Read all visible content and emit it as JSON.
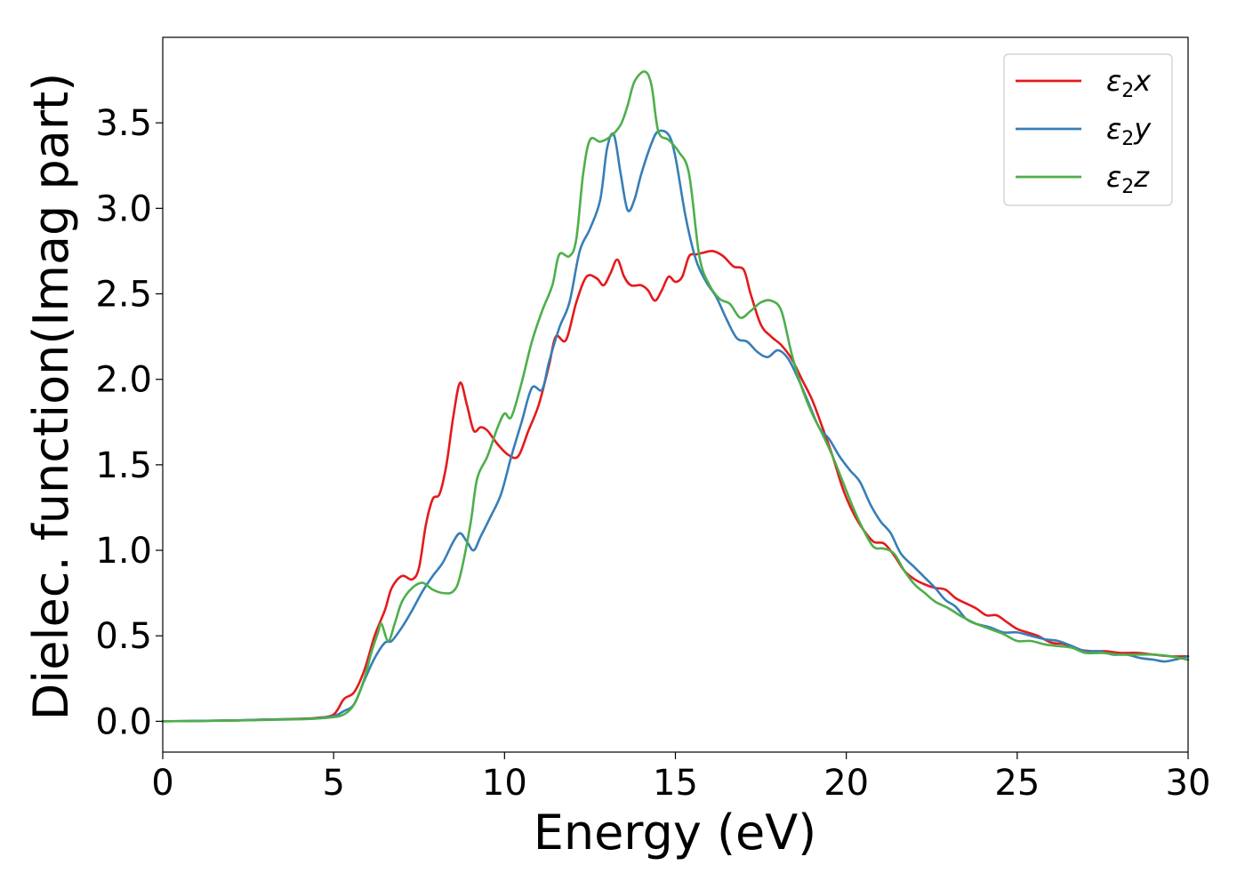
{
  "chart_data": {
    "type": "line",
    "title": "",
    "xlabel": "Energy (eV)",
    "ylabel": "Dielec. function(Imag part)",
    "xlim": [
      0,
      30
    ],
    "ylim": [
      -0.18,
      4.0
    ],
    "xticks": [
      0,
      5,
      10,
      15,
      20,
      25,
      30
    ],
    "xtick_labels": [
      "0",
      "5",
      "10",
      "15",
      "20",
      "25",
      "30"
    ],
    "yticks": [
      0.0,
      0.5,
      1.0,
      1.5,
      2.0,
      2.5,
      3.0,
      3.5
    ],
    "ytick_labels": [
      "0.0",
      "0.5",
      "1.0",
      "1.5",
      "2.0",
      "2.5",
      "3.0",
      "3.5"
    ],
    "grid": false,
    "legend_position": "top-right",
    "series": [
      {
        "name": "ε2x",
        "legend": {
          "base": "ε",
          "sub": "2",
          "suffix": "x"
        },
        "color": "#e41a1c",
        "points": [
          [
            0,
            0
          ],
          [
            2,
            0.005
          ],
          [
            3,
            0.01
          ],
          [
            4,
            0.015
          ],
          [
            4.5,
            0.02
          ],
          [
            5,
            0.04
          ],
          [
            5.3,
            0.13
          ],
          [
            5.6,
            0.17
          ],
          [
            5.9,
            0.3
          ],
          [
            6.2,
            0.5
          ],
          [
            6.5,
            0.65
          ],
          [
            6.7,
            0.78
          ],
          [
            7,
            0.85
          ],
          [
            7.3,
            0.83
          ],
          [
            7.5,
            0.9
          ],
          [
            7.7,
            1.15
          ],
          [
            7.9,
            1.3
          ],
          [
            8.1,
            1.33
          ],
          [
            8.3,
            1.5
          ],
          [
            8.5,
            1.78
          ],
          [
            8.7,
            1.98
          ],
          [
            8.9,
            1.85
          ],
          [
            9.1,
            1.7
          ],
          [
            9.3,
            1.72
          ],
          [
            9.5,
            1.7
          ],
          [
            9.8,
            1.62
          ],
          [
            10.1,
            1.56
          ],
          [
            10.4,
            1.55
          ],
          [
            10.7,
            1.7
          ],
          [
            11,
            1.85
          ],
          [
            11.3,
            2.08
          ],
          [
            11.5,
            2.25
          ],
          [
            11.8,
            2.23
          ],
          [
            12.1,
            2.45
          ],
          [
            12.4,
            2.6
          ],
          [
            12.7,
            2.59
          ],
          [
            12.9,
            2.55
          ],
          [
            13.1,
            2.62
          ],
          [
            13.3,
            2.7
          ],
          [
            13.5,
            2.6
          ],
          [
            13.7,
            2.55
          ],
          [
            14,
            2.55
          ],
          [
            14.2,
            2.52
          ],
          [
            14.4,
            2.46
          ],
          [
            14.6,
            2.52
          ],
          [
            14.8,
            2.6
          ],
          [
            15,
            2.57
          ],
          [
            15.2,
            2.6
          ],
          [
            15.4,
            2.72
          ],
          [
            15.6,
            2.73
          ],
          [
            15.8,
            2.74
          ],
          [
            16.1,
            2.75
          ],
          [
            16.4,
            2.72
          ],
          [
            16.7,
            2.66
          ],
          [
            17,
            2.64
          ],
          [
            17.2,
            2.5
          ],
          [
            17.5,
            2.32
          ],
          [
            17.8,
            2.25
          ],
          [
            18.1,
            2.2
          ],
          [
            18.4,
            2.12
          ],
          [
            18.7,
            2.0
          ],
          [
            19,
            1.88
          ],
          [
            19.3,
            1.72
          ],
          [
            19.6,
            1.55
          ],
          [
            19.9,
            1.36
          ],
          [
            20.2,
            1.22
          ],
          [
            20.5,
            1.12
          ],
          [
            20.8,
            1.05
          ],
          [
            21.1,
            1.04
          ],
          [
            21.4,
            0.97
          ],
          [
            21.7,
            0.88
          ],
          [
            22,
            0.83
          ],
          [
            22.3,
            0.8
          ],
          [
            22.6,
            0.78
          ],
          [
            22.9,
            0.77
          ],
          [
            23.2,
            0.72
          ],
          [
            23.5,
            0.69
          ],
          [
            23.8,
            0.66
          ],
          [
            24.1,
            0.62
          ],
          [
            24.4,
            0.62
          ],
          [
            24.7,
            0.58
          ],
          [
            25,
            0.54
          ],
          [
            25.3,
            0.52
          ],
          [
            25.6,
            0.5
          ],
          [
            26,
            0.46
          ],
          [
            26.4,
            0.45
          ],
          [
            26.8,
            0.42
          ],
          [
            27.2,
            0.41
          ],
          [
            27.6,
            0.41
          ],
          [
            28,
            0.4
          ],
          [
            28.5,
            0.4
          ],
          [
            29,
            0.39
          ],
          [
            29.5,
            0.38
          ],
          [
            30,
            0.38
          ]
        ]
      },
      {
        "name": "ε2y",
        "legend": {
          "base": "ε",
          "sub": "2",
          "suffix": "y"
        },
        "color": "#377eb8",
        "points": [
          [
            0,
            0
          ],
          [
            2,
            0.005
          ],
          [
            3,
            0.01
          ],
          [
            4,
            0.013
          ],
          [
            4.5,
            0.018
          ],
          [
            5,
            0.03
          ],
          [
            5.3,
            0.06
          ],
          [
            5.6,
            0.1
          ],
          [
            5.9,
            0.24
          ],
          [
            6.2,
            0.37
          ],
          [
            6.5,
            0.46
          ],
          [
            6.7,
            0.47
          ],
          [
            7,
            0.55
          ],
          [
            7.3,
            0.65
          ],
          [
            7.6,
            0.76
          ],
          [
            7.9,
            0.85
          ],
          [
            8.2,
            0.93
          ],
          [
            8.5,
            1.05
          ],
          [
            8.7,
            1.1
          ],
          [
            8.9,
            1.05
          ],
          [
            9.1,
            1.0
          ],
          [
            9.3,
            1.08
          ],
          [
            9.6,
            1.2
          ],
          [
            9.9,
            1.33
          ],
          [
            10.2,
            1.55
          ],
          [
            10.5,
            1.75
          ],
          [
            10.8,
            1.95
          ],
          [
            11.1,
            1.94
          ],
          [
            11.3,
            2.1
          ],
          [
            11.6,
            2.3
          ],
          [
            11.9,
            2.45
          ],
          [
            12.2,
            2.75
          ],
          [
            12.5,
            2.88
          ],
          [
            12.8,
            3.05
          ],
          [
            13.0,
            3.35
          ],
          [
            13.2,
            3.43
          ],
          [
            13.4,
            3.2
          ],
          [
            13.6,
            2.99
          ],
          [
            13.8,
            3.05
          ],
          [
            14.0,
            3.2
          ],
          [
            14.3,
            3.38
          ],
          [
            14.5,
            3.45
          ],
          [
            14.8,
            3.43
          ],
          [
            15.0,
            3.3
          ],
          [
            15.3,
            2.95
          ],
          [
            15.6,
            2.7
          ],
          [
            15.9,
            2.57
          ],
          [
            16.2,
            2.48
          ],
          [
            16.5,
            2.35
          ],
          [
            16.8,
            2.24
          ],
          [
            17.1,
            2.22
          ],
          [
            17.4,
            2.16
          ],
          [
            17.7,
            2.13
          ],
          [
            18,
            2.17
          ],
          [
            18.3,
            2.12
          ],
          [
            18.6,
            2.0
          ],
          [
            18.9,
            1.86
          ],
          [
            19.2,
            1.72
          ],
          [
            19.5,
            1.65
          ],
          [
            19.8,
            1.55
          ],
          [
            20.1,
            1.47
          ],
          [
            20.4,
            1.4
          ],
          [
            20.7,
            1.27
          ],
          [
            21,
            1.17
          ],
          [
            21.3,
            1.1
          ],
          [
            21.6,
            0.98
          ],
          [
            22,
            0.9
          ],
          [
            22.3,
            0.84
          ],
          [
            22.6,
            0.78
          ],
          [
            22.9,
            0.71
          ],
          [
            23.2,
            0.67
          ],
          [
            23.5,
            0.6
          ],
          [
            23.8,
            0.57
          ],
          [
            24.2,
            0.55
          ],
          [
            24.6,
            0.52
          ],
          [
            25,
            0.52
          ],
          [
            25.4,
            0.5
          ],
          [
            25.8,
            0.48
          ],
          [
            26.2,
            0.47
          ],
          [
            26.6,
            0.44
          ],
          [
            27,
            0.41
          ],
          [
            27.4,
            0.41
          ],
          [
            27.8,
            0.39
          ],
          [
            28.2,
            0.39
          ],
          [
            28.6,
            0.37
          ],
          [
            29,
            0.36
          ],
          [
            29.3,
            0.35
          ],
          [
            29.6,
            0.36
          ],
          [
            30,
            0.38
          ]
        ]
      },
      {
        "name": "ε2z",
        "legend": {
          "base": "ε",
          "sub": "2",
          "suffix": "z"
        },
        "color": "#4daf4a",
        "points": [
          [
            0,
            0
          ],
          [
            2,
            0.004
          ],
          [
            3,
            0.008
          ],
          [
            4,
            0.012
          ],
          [
            4.5,
            0.016
          ],
          [
            5,
            0.025
          ],
          [
            5.3,
            0.04
          ],
          [
            5.6,
            0.1
          ],
          [
            5.9,
            0.25
          ],
          [
            6.1,
            0.4
          ],
          [
            6.3,
            0.52
          ],
          [
            6.4,
            0.57
          ],
          [
            6.6,
            0.47
          ],
          [
            6.8,
            0.58
          ],
          [
            7,
            0.7
          ],
          [
            7.3,
            0.78
          ],
          [
            7.6,
            0.81
          ],
          [
            7.9,
            0.77
          ],
          [
            8.2,
            0.75
          ],
          [
            8.5,
            0.76
          ],
          [
            8.7,
            0.85
          ],
          [
            9,
            1.15
          ],
          [
            9.2,
            1.42
          ],
          [
            9.5,
            1.55
          ],
          [
            9.8,
            1.72
          ],
          [
            10,
            1.8
          ],
          [
            10.2,
            1.78
          ],
          [
            10.5,
            1.98
          ],
          [
            10.8,
            2.22
          ],
          [
            11.1,
            2.4
          ],
          [
            11.4,
            2.55
          ],
          [
            11.6,
            2.73
          ],
          [
            11.9,
            2.72
          ],
          [
            12.1,
            2.82
          ],
          [
            12.3,
            3.2
          ],
          [
            12.5,
            3.4
          ],
          [
            12.8,
            3.39
          ],
          [
            13.1,
            3.42
          ],
          [
            13.4,
            3.49
          ],
          [
            13.6,
            3.6
          ],
          [
            13.8,
            3.74
          ],
          [
            14.1,
            3.8
          ],
          [
            14.3,
            3.72
          ],
          [
            14.5,
            3.45
          ],
          [
            14.8,
            3.4
          ],
          [
            15.1,
            3.33
          ],
          [
            15.4,
            3.2
          ],
          [
            15.7,
            2.72
          ],
          [
            16,
            2.55
          ],
          [
            16.3,
            2.47
          ],
          [
            16.6,
            2.44
          ],
          [
            16.9,
            2.36
          ],
          [
            17.2,
            2.4
          ],
          [
            17.5,
            2.45
          ],
          [
            17.8,
            2.46
          ],
          [
            18.1,
            2.4
          ],
          [
            18.4,
            2.15
          ],
          [
            18.7,
            1.95
          ],
          [
            19,
            1.8
          ],
          [
            19.3,
            1.68
          ],
          [
            19.6,
            1.55
          ],
          [
            19.9,
            1.4
          ],
          [
            20.2,
            1.25
          ],
          [
            20.5,
            1.12
          ],
          [
            20.8,
            1.02
          ],
          [
            21.1,
            1.01
          ],
          [
            21.4,
            0.98
          ],
          [
            21.7,
            0.88
          ],
          [
            22,
            0.8
          ],
          [
            22.3,
            0.75
          ],
          [
            22.6,
            0.7
          ],
          [
            23,
            0.66
          ],
          [
            23.4,
            0.61
          ],
          [
            23.8,
            0.57
          ],
          [
            24.2,
            0.54
          ],
          [
            24.6,
            0.51
          ],
          [
            25,
            0.47
          ],
          [
            25.4,
            0.47
          ],
          [
            25.8,
            0.45
          ],
          [
            26.2,
            0.44
          ],
          [
            26.6,
            0.43
          ],
          [
            27,
            0.4
          ],
          [
            27.5,
            0.4
          ],
          [
            28,
            0.39
          ],
          [
            28.5,
            0.39
          ],
          [
            29,
            0.39
          ],
          [
            29.5,
            0.38
          ],
          [
            30,
            0.36
          ]
        ]
      }
    ]
  }
}
